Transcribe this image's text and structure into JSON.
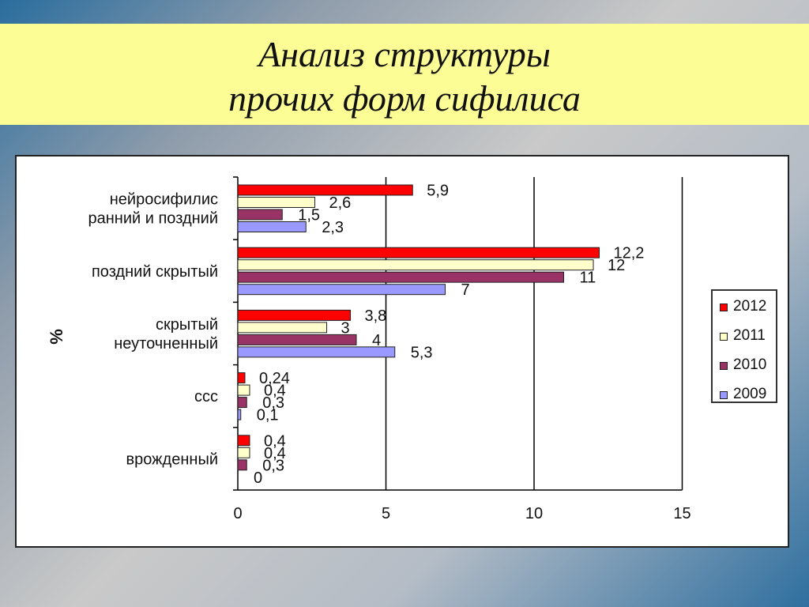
{
  "slide": {
    "title_line1": "Анализ структуры",
    "title_line2": "прочих форм сифилиса"
  },
  "chart_data": {
    "type": "bar",
    "orientation": "horizontal",
    "ylabel": "%",
    "xlim": [
      0,
      15
    ],
    "xticks": [
      "0",
      "5",
      "10",
      "15"
    ],
    "grid": "vertical major gridlines",
    "legend_position": "right",
    "categories": [
      [
        "нейросифилис",
        "ранний  и поздний"
      ],
      [
        "поздний скрытый"
      ],
      [
        "скрытый",
        "неуточненный"
      ],
      [
        "ссс"
      ],
      [
        "врожденный"
      ]
    ],
    "series": [
      {
        "name": "2012",
        "color": "#ff0000",
        "values": [
          5.9,
          12.2,
          3.8,
          0.24,
          0.4
        ],
        "labels": [
          "5,9",
          "12,2",
          "3,8",
          "0,24",
          "0,4"
        ]
      },
      {
        "name": "2011",
        "color": "#ffffcc",
        "values": [
          2.6,
          12,
          3,
          0.4,
          0.4
        ],
        "labels": [
          "2,6",
          "12",
          "3",
          "0,4",
          "0,4"
        ]
      },
      {
        "name": "2010",
        "color": "#993366",
        "values": [
          1.5,
          11,
          4,
          0.3,
          0.3
        ],
        "labels": [
          "1,5",
          "11",
          "4",
          "0,3",
          "0,3"
        ]
      },
      {
        "name": "2009",
        "color": "#9999ff",
        "values": [
          2.3,
          7,
          5.3,
          0.1,
          0
        ],
        "labels": [
          "2,3",
          "7",
          "5,3",
          "0,1",
          "0"
        ]
      }
    ]
  }
}
